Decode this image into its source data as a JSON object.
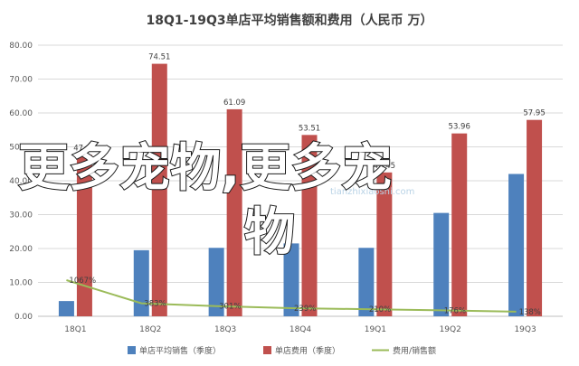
{
  "chart_data": {
    "type": "bar",
    "title": "18Q1-19Q3单店平均销售额和费用（人民币 万）",
    "categories": [
      "18Q1",
      "18Q2",
      "18Q3",
      "18Q4",
      "19Q1",
      "19Q2",
      "19Q3"
    ],
    "ylim": [
      0,
      80
    ],
    "yticks": [
      "0.00",
      "10.00",
      "20.00",
      "30.00",
      "40.00",
      "50.00",
      "60.00",
      "70.00",
      "80.00"
    ],
    "grid": true,
    "legend_position": "bottom",
    "series": [
      {
        "name": "单店平均销售（季度）",
        "type": "bar",
        "color": "#4e81bd",
        "values": [
          4.5,
          19.5,
          20.2,
          21.5,
          20.2,
          30.5,
          42.0
        ]
      },
      {
        "name": "单店费用（季度）",
        "type": "bar",
        "color": "#c0504d",
        "values": [
          47.63,
          74.51,
          61.09,
          53.51,
          42.45,
          53.96,
          57.95
        ],
        "labels": [
          "47.63",
          "74.51",
          "61.09",
          "53.51",
          "42.45",
          "53.96",
          "57.95"
        ]
      },
      {
        "name": "费用/销售额",
        "type": "line",
        "color": "#9bbb59",
        "values": [
          10.67,
          3.83,
          3.01,
          2.39,
          2.1,
          1.76,
          1.38
        ],
        "labels": [
          "1067%",
          "383%",
          "301%",
          "239%",
          "210%",
          "176%",
          "138%"
        ]
      }
    ]
  },
  "overlay": {
    "line1": "更多宠物,更多宠",
    "line2": "物"
  },
  "watermark": {
    "text": "tianzhixiaoshi.com"
  }
}
